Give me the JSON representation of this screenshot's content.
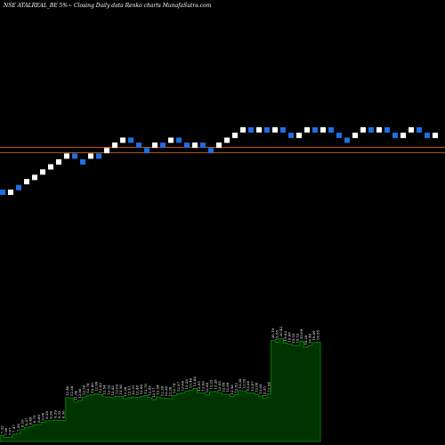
{
  "header": {
    "title": "NSE ATALREAL_BE 5%~  Closing Daily data  Renko  charts MunafaSutra.com"
  },
  "colors": {
    "background": "#000000",
    "up_brick": "#ffffff",
    "down_brick": "#1e6fe0",
    "line": "#b5581e",
    "volume_fill": "#003300",
    "volume_stroke": "#009900",
    "text": "#ffffff"
  },
  "chart_data": [
    {
      "type": "renko",
      "brick_size_pct": 5,
      "reference_lines": [
        9.9,
        10.4
      ],
      "bricks": [
        {
          "d": "down",
          "v": 6.9
        },
        {
          "d": "up",
          "v": 6.9
        },
        {
          "d": "down",
          "v": 7.2
        },
        {
          "d": "up",
          "v": 7.6
        },
        {
          "d": "up",
          "v": 7.9
        },
        {
          "d": "up",
          "v": 8.3
        },
        {
          "d": "up",
          "v": 8.7
        },
        {
          "d": "up",
          "v": 9.1
        },
        {
          "d": "up",
          "v": 9.6
        },
        {
          "d": "down",
          "v": 9.6
        },
        {
          "d": "down",
          "v": 9.1
        },
        {
          "d": "up",
          "v": 9.6
        },
        {
          "d": "down",
          "v": 9.6
        },
        {
          "d": "up",
          "v": 10.1
        },
        {
          "d": "up",
          "v": 10.6
        },
        {
          "d": "up",
          "v": 11.1
        },
        {
          "d": "down",
          "v": 11.1
        },
        {
          "d": "down",
          "v": 10.6
        },
        {
          "d": "down",
          "v": 10.1
        },
        {
          "d": "up",
          "v": 10.6
        },
        {
          "d": "down",
          "v": 10.6
        },
        {
          "d": "up",
          "v": 11.1
        },
        {
          "d": "down",
          "v": 11.1
        },
        {
          "d": "down",
          "v": 10.6
        },
        {
          "d": "up",
          "v": 10.6
        },
        {
          "d": "down",
          "v": 10.6
        },
        {
          "d": "down",
          "v": 10.1
        },
        {
          "d": "up",
          "v": 10.6
        },
        {
          "d": "up",
          "v": 11.1
        },
        {
          "d": "up",
          "v": 11.6
        },
        {
          "d": "up",
          "v": 12.2
        },
        {
          "d": "down",
          "v": 12.2
        },
        {
          "d": "up",
          "v": 12.2
        },
        {
          "d": "down",
          "v": 12.2
        },
        {
          "d": "up",
          "v": 12.2
        },
        {
          "d": "down",
          "v": 12.2
        },
        {
          "d": "down",
          "v": 11.6
        },
        {
          "d": "up",
          "v": 11.6
        },
        {
          "d": "up",
          "v": 12.2
        },
        {
          "d": "down",
          "v": 12.2
        },
        {
          "d": "up",
          "v": 12.2
        },
        {
          "d": "down",
          "v": 12.2
        },
        {
          "d": "down",
          "v": 11.6
        },
        {
          "d": "down",
          "v": 11.1
        },
        {
          "d": "up",
          "v": 11.6
        },
        {
          "d": "up",
          "v": 12.2
        },
        {
          "d": "down",
          "v": 12.2
        },
        {
          "d": "up",
          "v": 12.2
        },
        {
          "d": "down",
          "v": 12.2
        },
        {
          "d": "down",
          "v": 11.6
        },
        {
          "d": "up",
          "v": 11.6
        },
        {
          "d": "up",
          "v": 12.2
        },
        {
          "d": "down",
          "v": 12.2
        },
        {
          "d": "down",
          "v": 11.6
        },
        {
          "d": "up",
          "v": 11.6
        }
      ]
    },
    {
      "type": "area",
      "labels": [
        "7.32",
        "7.06",
        "7.07",
        "7.47",
        "7.58",
        "8.16",
        "8.37",
        "8.49",
        "8.75",
        "8.80",
        "9.08",
        "9.29",
        "9.30",
        "9.39",
        "9.35",
        "9.36",
        "12.40",
        "12.38",
        "11.80",
        "12.06",
        "12.50",
        "12.78",
        "12.80",
        "12.99",
        "12.82",
        "12.54",
        "12.52",
        "12.43",
        "12.62",
        "12.56",
        "12.28",
        "12.41",
        "12.51",
        "12.48",
        "12.60",
        "12.70",
        "12.43",
        "12.17",
        "12.54",
        "12.38",
        "12.36",
        "12.28",
        "12.74",
        "12.97",
        "13.08",
        "13.29",
        "13.46",
        "13.66",
        "13.05",
        "13.06",
        "12.84",
        "13.25",
        "13.28",
        "13.05",
        "12.89",
        "12.88",
        "12.56",
        "12.82",
        "13.38",
        "13.35",
        "13.08",
        "13.07",
        "12.88",
        "12.65",
        "12.33",
        "12.94",
        "20.19",
        "19.95",
        "20.42",
        "19.82",
        "19.68",
        "19.52",
        "19.52",
        "20.09",
        "19.28",
        "19.48",
        "19.89",
        "19.95"
      ]
    }
  ]
}
